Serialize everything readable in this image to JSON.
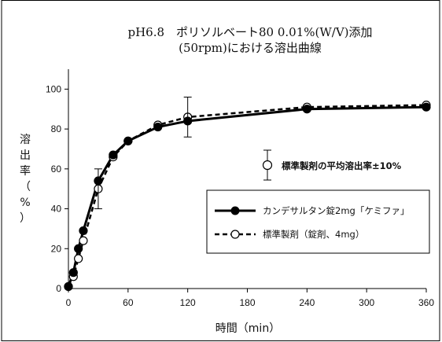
{
  "chart_data": {
    "type": "line",
    "title_lines": [
      "pH6.8　ポリソルベート80 0.01%(W/V)添加",
      "(50rpm)における溶出曲線"
    ],
    "xlabel": "時間（min）",
    "ylabel_chars": [
      "溶",
      "出",
      "率",
      "（",
      "%",
      "）"
    ],
    "xlim": [
      0,
      360
    ],
    "ylim": [
      0,
      110
    ],
    "xticks": [
      "0",
      "60",
      "120",
      "180",
      "240",
      "300",
      "360"
    ],
    "yticks": [
      "0",
      "20",
      "40",
      "60",
      "80",
      "100"
    ],
    "x": [
      0,
      5,
      10,
      15,
      30,
      45,
      60,
      90,
      120,
      240,
      360
    ],
    "series": [
      {
        "name": "カンデサルタン錠2mg「ケミファ」",
        "marker": "filled-circle",
        "line": "solid",
        "color": "#000000",
        "values": [
          1,
          8,
          20,
          29,
          54,
          67,
          74,
          81,
          84,
          90,
          91
        ]
      },
      {
        "name": "標準製剤（錠剤、4mg）",
        "marker": "open-circle",
        "line": "dashed",
        "color": "#000000",
        "values": [
          1,
          6,
          15,
          24,
          50,
          66,
          74,
          82,
          86,
          91,
          92
        ]
      }
    ],
    "error_bars": [
      {
        "x": 30,
        "center": 50,
        "low": 40,
        "high": 60
      },
      {
        "x": 120,
        "center": 86,
        "low": 76,
        "high": 96
      }
    ],
    "annotation": {
      "text": "標準製剤の平均溶出率±10%"
    },
    "legend_position": "right-center"
  }
}
